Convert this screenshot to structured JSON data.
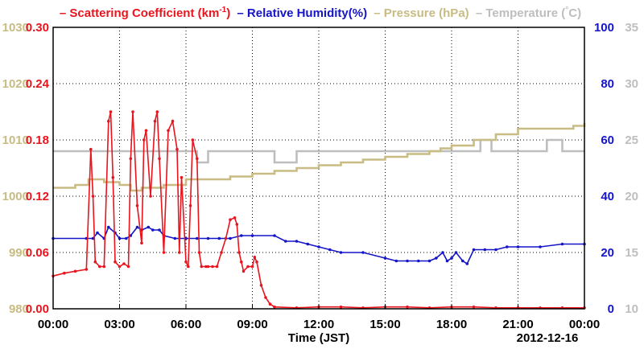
{
  "chart_data": {
    "type": "line",
    "date_label": "2012-12-16",
    "xlabel": "Time (JST)",
    "x_ticks": [
      "00:00",
      "03:00",
      "06:00",
      "09:00",
      "12:00",
      "15:00",
      "18:00",
      "21:00",
      "00:00"
    ],
    "xlim_hours": [
      0,
      24
    ],
    "legend_position": "top",
    "grid": true,
    "axes": {
      "pressure": {
        "ticks": [
          "1030",
          "1020",
          "1010",
          "1000",
          "990",
          "980"
        ],
        "range": [
          980,
          1030
        ],
        "color": "#c8bc84"
      },
      "scattering": {
        "ticks": [
          "0.30",
          "0.24",
          "0.18",
          "0.12",
          "0.06",
          "0.00"
        ],
        "range": [
          0,
          0.3
        ],
        "color": "#e8141e"
      },
      "humidity": {
        "ticks": [
          "100",
          "80",
          "60",
          "40",
          "20",
          "0"
        ],
        "range": [
          0,
          100
        ],
        "color": "#1414c8"
      },
      "temperature": {
        "ticks": [
          "35",
          "30",
          "25",
          "20",
          "15",
          "10"
        ],
        "range": [
          10,
          35
        ],
        "color": "#bebebe"
      }
    },
    "legend": [
      {
        "prefix": "– ",
        "name": "Scattering Coefficient (km",
        "sup": "-1",
        "suffix": ")",
        "color": "#e8141e"
      },
      {
        "prefix": " – ",
        "name": "Relative Humidity(%)",
        "sup": "",
        "suffix": "",
        "color": "#1414c8"
      },
      {
        "prefix": " – ",
        "name": "Pressure (hPa)",
        "sup": "",
        "suffix": "",
        "color": "#c8bc84"
      },
      {
        "prefix": " – ",
        "name": "Temperature (",
        "sup": "°",
        "suffix": "C)",
        "color": "#bebebe"
      }
    ],
    "series": [
      {
        "name": "Scattering Coefficient",
        "axis": "scattering",
        "color": "#e8141e",
        "markers": true,
        "x": [
          0,
          0.5,
          1,
          1.5,
          1.7,
          1.8,
          1.9,
          2.1,
          2.3,
          2.5,
          2.6,
          2.7,
          2.8,
          3.0,
          3.2,
          3.4,
          3.5,
          3.6,
          3.8,
          4.0,
          4.1,
          4.2,
          4.4,
          4.6,
          4.7,
          4.8,
          5.0,
          5.2,
          5.4,
          5.6,
          5.7,
          5.8,
          6.0,
          6.1,
          6.2,
          6.3,
          6.5,
          6.6,
          6.7,
          6.9,
          7.0,
          7.2,
          7.4,
          7.6,
          7.8,
          8.0,
          8.2,
          8.3,
          8.4,
          8.5,
          8.6,
          8.8,
          9.0,
          9.1,
          9.2,
          9.4,
          9.6,
          9.8,
          10.0,
          11,
          12,
          13,
          14,
          15,
          16,
          17,
          18,
          19,
          20,
          21,
          22,
          23,
          24
        ],
        "y": [
          0.035,
          0.038,
          0.04,
          0.042,
          0.17,
          0.12,
          0.05,
          0.045,
          0.045,
          0.2,
          0.21,
          0.14,
          0.05,
          0.045,
          0.048,
          0.045,
          0.16,
          0.21,
          0.11,
          0.07,
          0.18,
          0.19,
          0.12,
          0.2,
          0.21,
          0.16,
          0.06,
          0.19,
          0.2,
          0.17,
          0.06,
          0.14,
          0.05,
          0.045,
          0.11,
          0.18,
          0.16,
          0.06,
          0.045,
          0.045,
          0.045,
          0.045,
          0.045,
          0.06,
          0.075,
          0.095,
          0.097,
          0.09,
          0.06,
          0.05,
          0.04,
          0.045,
          0.045,
          0.055,
          0.05,
          0.025,
          0.012,
          0.005,
          0.002,
          0.001,
          0.002,
          0.002,
          0.001,
          0.002,
          0.002,
          0.001,
          0.002,
          0.002,
          0.001,
          0.001,
          0.001,
          0.001,
          0.001
        ]
      },
      {
        "name": "Relative Humidity",
        "axis": "humidity",
        "color": "#1414c8",
        "markers": true,
        "x": [
          0,
          1.5,
          1.8,
          2.0,
          2.3,
          2.5,
          2.8,
          3.0,
          3.3,
          3.5,
          3.8,
          4.0,
          4.3,
          4.5,
          4.8,
          5.0,
          5.5,
          6.0,
          6.5,
          7.0,
          7.5,
          8.0,
          8.5,
          9.0,
          10,
          10.5,
          11,
          11.5,
          12,
          12.5,
          13,
          14,
          15,
          15.5,
          16,
          16.5,
          17,
          17.3,
          17.6,
          17.8,
          18,
          18.2,
          18.5,
          18.7,
          19,
          19.5,
          20,
          20.5,
          21,
          22,
          23,
          24
        ],
        "y": [
          25,
          25,
          25,
          27,
          25,
          29,
          27,
          25,
          25,
          26,
          29,
          28,
          29,
          28,
          28,
          26,
          25,
          25,
          25,
          25,
          25,
          25,
          26,
          26,
          26,
          24,
          24,
          23,
          22,
          21,
          20,
          20,
          18,
          17,
          17,
          17,
          17,
          18,
          20,
          17,
          18,
          20,
          17,
          16,
          21,
          21,
          21,
          22,
          22,
          22,
          23,
          23
        ]
      },
      {
        "name": "Pressure",
        "axis": "pressure",
        "color": "#c8bc84",
        "markers": false,
        "x": [
          0,
          1.0,
          1.6,
          2.0,
          2.3,
          3.0,
          3.5,
          4.0,
          5.0,
          6.0,
          8.0,
          9.0,
          10.0,
          11.0,
          12.0,
          13.0,
          14.0,
          15.0,
          16.0,
          17.0,
          17.5,
          18.0,
          19.0,
          20.0,
          21.0,
          22.0,
          23.0,
          23.5,
          24
        ],
        "y": [
          1001.5,
          1002,
          1003,
          1003,
          1002.5,
          1002,
          1001,
          1001.5,
          1002,
          1003,
          1003.5,
          1004,
          1004.5,
          1005,
          1005.5,
          1006,
          1006.5,
          1007,
          1007.5,
          1008,
          1008.5,
          1009,
          1010,
          1011,
          1012,
          1012,
          1012,
          1012.5,
          1013
        ]
      },
      {
        "name": "Temperature",
        "axis": "temperature",
        "color": "#bebebe",
        "markers": false,
        "x": [
          0,
          1,
          2,
          3,
          4,
          5,
          6,
          6.5,
          7,
          7.5,
          8,
          8.5,
          9,
          9.5,
          10,
          11,
          12,
          13,
          14,
          15,
          16,
          17,
          18,
          19,
          19.3,
          19.5,
          19.8,
          20,
          21,
          22,
          22.3,
          22.6,
          23,
          24
        ],
        "y": [
          24,
          24,
          24,
          24,
          24,
          24,
          24,
          23,
          24,
          24,
          24,
          24,
          24,
          24,
          23,
          24,
          24,
          24,
          24,
          24,
          24,
          24,
          24,
          24,
          25,
          25,
          24,
          24,
          24,
          24,
          25,
          25,
          24,
          24
        ]
      }
    ]
  }
}
